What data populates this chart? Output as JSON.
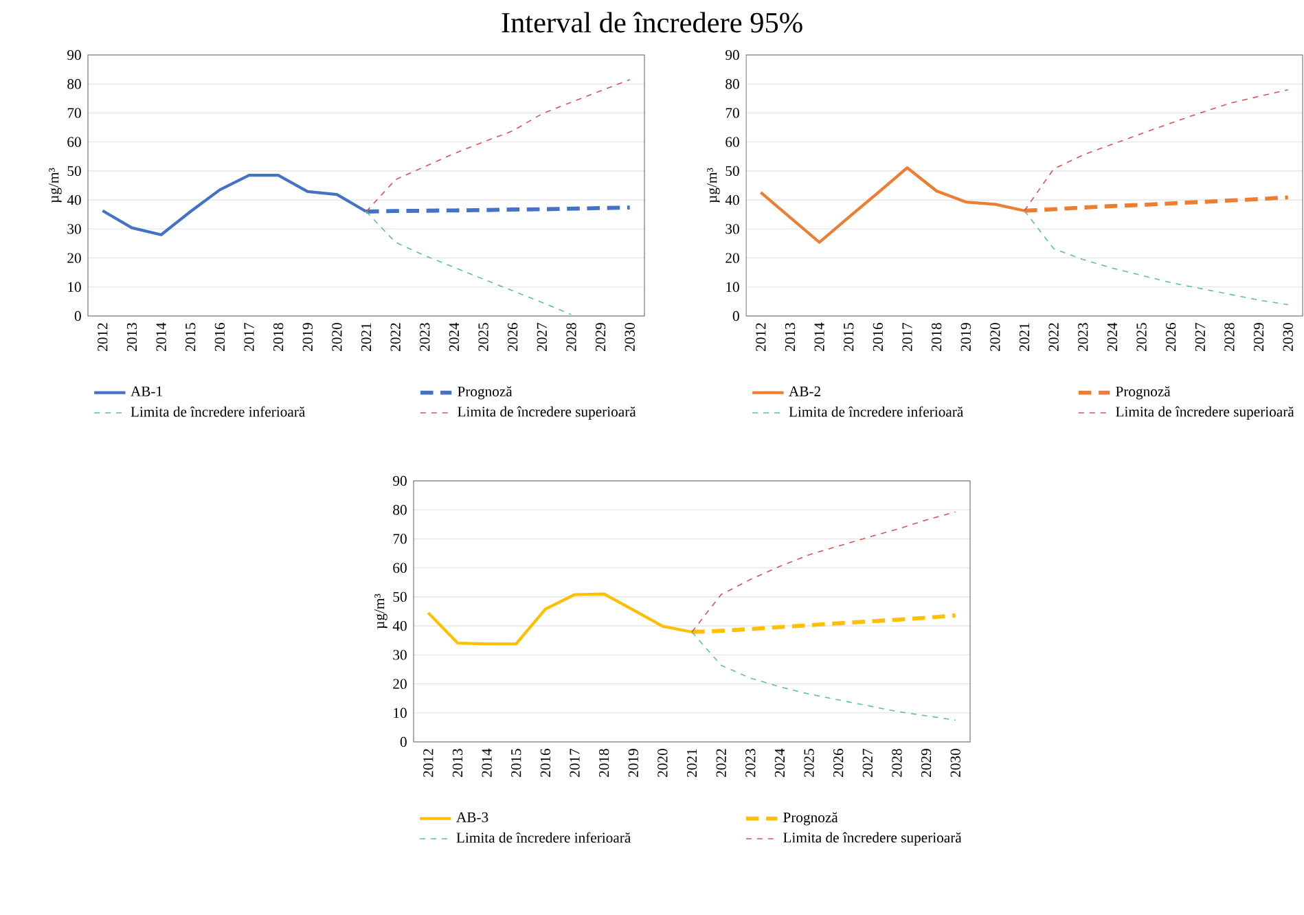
{
  "chart_data": [
    {
      "type": "line",
      "title": "Interval de încredere 95%",
      "ylabel": "µg/m³",
      "categories": [
        "2012",
        "2013",
        "2014",
        "2015",
        "2016",
        "2017",
        "2018",
        "2019",
        "2020",
        "2021",
        "2022",
        "2023",
        "2024",
        "2025",
        "2026",
        "2027",
        "2028",
        "2029",
        "2030"
      ],
      "ylim": [
        0,
        90
      ],
      "yticks": [
        0,
        10,
        20,
        30,
        40,
        50,
        60,
        70,
        80,
        90
      ],
      "grid": "y",
      "legend": "bottom",
      "series": [
        {
          "name": "AB-1",
          "color": "#4472c4",
          "line_style": "solid",
          "values": [
            36.3,
            30.4,
            28,
            36,
            43.5,
            48.5,
            48.5,
            42.9,
            41.9,
            36,
            null,
            null,
            null,
            null,
            null,
            null,
            null,
            null,
            null
          ]
        },
        {
          "name": "Prognoză",
          "color": "#4472c4",
          "line_style": "dashed",
          "values": [
            null,
            null,
            null,
            null,
            null,
            null,
            null,
            null,
            null,
            36,
            36.2,
            36.3,
            36.4,
            36.5,
            36.7,
            36.8,
            37,
            37.2,
            37.4
          ]
        },
        {
          "name": "Limita de încredere inferioară",
          "color": "#5fbf9a",
          "line_style": "dashed",
          "values": [
            null,
            null,
            null,
            null,
            null,
            null,
            null,
            null,
            null,
            36,
            25.4,
            20.8,
            16.8,
            12.7,
            8.7,
            4.7,
            0.5,
            null,
            null
          ]
        },
        {
          "name": "Limita de încredere superioară",
          "color": "#d9534f",
          "line_style": "dashed",
          "values": [
            null,
            null,
            null,
            null,
            null,
            null,
            null,
            null,
            null,
            36,
            47,
            51.5,
            56,
            60,
            63.8,
            69.7,
            73.7,
            77.6,
            81.5
          ]
        }
      ]
    },
    {
      "type": "line",
      "ylabel": "µg/m³",
      "categories": [
        "2012",
        "2013",
        "2014",
        "2015",
        "2016",
        "2017",
        "2018",
        "2019",
        "2020",
        "2021",
        "2022",
        "2023",
        "2024",
        "2025",
        "2026",
        "2027",
        "2028",
        "2029",
        "2030"
      ],
      "ylim": [
        0,
        90
      ],
      "yticks": [
        0,
        10,
        20,
        30,
        40,
        50,
        60,
        70,
        80,
        90
      ],
      "grid": "y",
      "legend": "bottom",
      "series": [
        {
          "name": "AB-2",
          "color": "#ed7d31",
          "line_style": "solid",
          "values": [
            42.6,
            34,
            25.4,
            34,
            42.5,
            51.1,
            43.1,
            39.3,
            38.5,
            36.3,
            null,
            null,
            null,
            null,
            null,
            null,
            null,
            null,
            null
          ]
        },
        {
          "name": "Prognoză",
          "color": "#ed7d31",
          "line_style": "dashed",
          "values": [
            null,
            null,
            null,
            null,
            null,
            null,
            null,
            null,
            null,
            36.3,
            36.8,
            37.4,
            37.9,
            38.3,
            38.8,
            39.3,
            39.8,
            40.3,
            40.9
          ]
        },
        {
          "name": "Limita de încredere inferioară",
          "color": "#5fbf9a",
          "line_style": "dashed",
          "values": [
            null,
            null,
            null,
            null,
            null,
            null,
            null,
            null,
            null,
            36.3,
            23.2,
            19.5,
            16.5,
            14,
            11.5,
            9.5,
            7.5,
            5.5,
            3.9
          ]
        },
        {
          "name": "Limita de încredere superioară",
          "color": "#d9534f",
          "line_style": "dashed",
          "values": [
            null,
            null,
            null,
            null,
            null,
            null,
            null,
            null,
            null,
            36.3,
            50.7,
            55.5,
            59.2,
            62.9,
            66.5,
            70,
            73.3,
            75.7,
            78
          ]
        }
      ]
    },
    {
      "type": "line",
      "ylabel": "µg/m³",
      "categories": [
        "2012",
        "2013",
        "2014",
        "2015",
        "2016",
        "2017",
        "2018",
        "2019",
        "2020",
        "2021",
        "2022",
        "2023",
        "2024",
        "2025",
        "2026",
        "2027",
        "2028",
        "2029",
        "2030"
      ],
      "ylim": [
        0,
        90
      ],
      "yticks": [
        0,
        10,
        20,
        30,
        40,
        50,
        60,
        70,
        80,
        90
      ],
      "grid": "y",
      "legend": "bottom",
      "series": [
        {
          "name": "AB-3",
          "color": "#ffc000",
          "line_style": "solid",
          "values": [
            44.5,
            34.1,
            33.8,
            33.8,
            45.8,
            50.8,
            51,
            45.5,
            39.9,
            37.9,
            null,
            null,
            null,
            null,
            null,
            null,
            null,
            null,
            null
          ]
        },
        {
          "name": "Prognoză",
          "color": "#ffc000",
          "line_style": "dashed",
          "values": [
            null,
            null,
            null,
            null,
            null,
            null,
            null,
            null,
            null,
            37.9,
            38.3,
            38.9,
            39.6,
            40.2,
            40.9,
            41.5,
            42.1,
            42.8,
            43.6
          ]
        },
        {
          "name": "Limita de încredere inferioară",
          "color": "#5fbf9a",
          "line_style": "dashed",
          "values": [
            null,
            null,
            null,
            null,
            null,
            null,
            null,
            null,
            null,
            37.9,
            26.4,
            22,
            19,
            16.5,
            14.5,
            12.5,
            10.5,
            9,
            7.5
          ]
        },
        {
          "name": "Limita de încredere superioară",
          "color": "#d9534f",
          "line_style": "dashed",
          "values": [
            null,
            null,
            null,
            null,
            null,
            null,
            null,
            null,
            null,
            37.9,
            50.8,
            56,
            60.5,
            64.5,
            67.5,
            70.5,
            73.3,
            76.5,
            79.3
          ]
        }
      ]
    }
  ]
}
